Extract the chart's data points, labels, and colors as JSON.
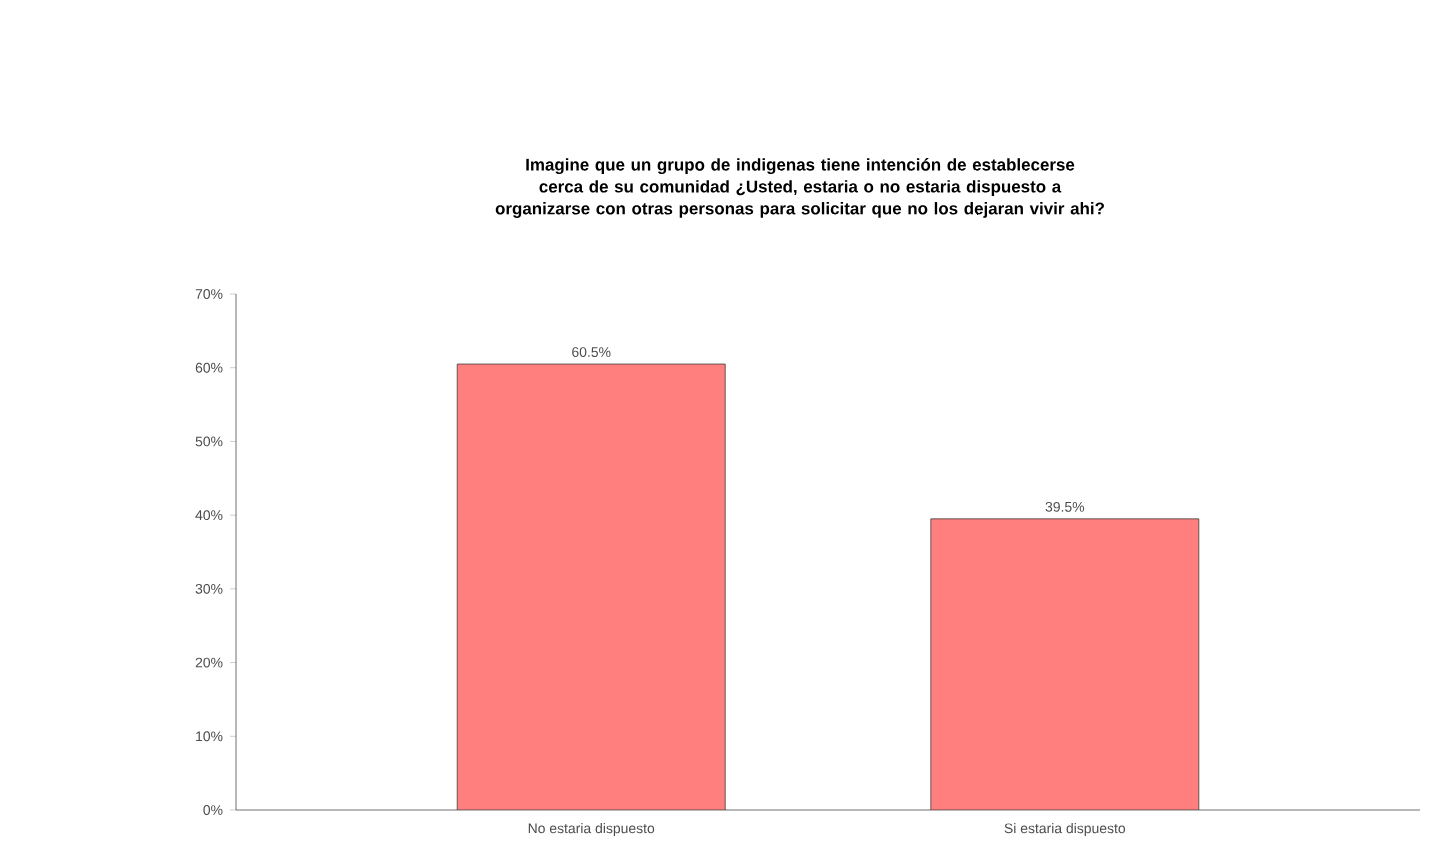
{
  "chart_data": {
    "type": "bar",
    "title": "Imagine que un grupo de indigenas tiene intención de establecerse cerca de su comunidad ¿Usted, estaria o no estaria dispuesto a organizarse con otras personas para solicitar que no los dejaran vivir ahi?",
    "categories": [
      "No estaria dispuesto",
      "Si estaria dispuesto"
    ],
    "values": [
      60.5,
      39.5
    ],
    "value_labels": [
      "60.5%",
      "39.5%"
    ],
    "color": "#ff7f7f",
    "ylim": [
      0,
      70
    ],
    "yticks": [
      {
        "value": 0,
        "label": "0%"
      },
      {
        "value": 10,
        "label": "10%"
      },
      {
        "value": 20,
        "label": "20%"
      },
      {
        "value": 30,
        "label": "30%"
      },
      {
        "value": 40,
        "label": "40%"
      },
      {
        "value": 50,
        "label": "50%"
      },
      {
        "value": 60,
        "label": "60%"
      },
      {
        "value": 70,
        "label": "70%"
      }
    ],
    "grid": false
  }
}
